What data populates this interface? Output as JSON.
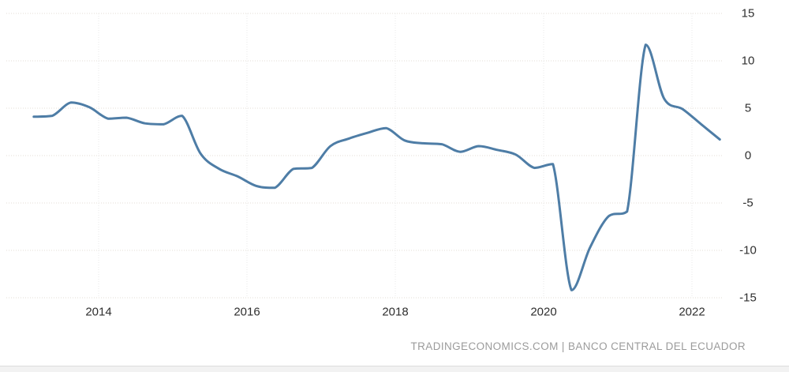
{
  "chart_data": {
    "type": "line",
    "title": "",
    "xlabel": "",
    "ylabel": "",
    "legend": "none",
    "grid": "dotted",
    "line_color": "#4e7da6",
    "ylim": [
      -15,
      15
    ],
    "y_ticks": [
      "15",
      "10",
      "5",
      "0",
      "-5",
      "-10",
      "-15"
    ],
    "x_ticks": [
      "2014",
      "2016",
      "2018",
      "2020",
      "2022"
    ],
    "x_range": [
      "2013-Q1",
      "2022-Q2"
    ],
    "points": [
      {
        "q": "2013-Q1",
        "v": 4.1
      },
      {
        "q": "2013-Q2",
        "v": 4.2
      },
      {
        "q": "2013-Q3",
        "v": 5.6
      },
      {
        "q": "2013-Q4",
        "v": 5.1
      },
      {
        "q": "2014-Q1",
        "v": 3.9
      },
      {
        "q": "2014-Q2",
        "v": 4.0
      },
      {
        "q": "2014-Q3",
        "v": 3.4
      },
      {
        "q": "2014-Q4",
        "v": 3.3
      },
      {
        "q": "2015-Q1",
        "v": 4.2
      },
      {
        "q": "2015-Q2",
        "v": 0.2
      },
      {
        "q": "2015-Q3",
        "v": -1.4
      },
      {
        "q": "2015-Q4",
        "v": -2.2
      },
      {
        "q": "2016-Q1",
        "v": -3.2
      },
      {
        "q": "2016-Q2",
        "v": -3.4
      },
      {
        "q": "2016-Q3",
        "v": -1.4
      },
      {
        "q": "2016-Q4",
        "v": -1.3
      },
      {
        "q": "2017-Q1",
        "v": 1.0
      },
      {
        "q": "2017-Q2",
        "v": 1.8
      },
      {
        "q": "2017-Q3",
        "v": 2.4
      },
      {
        "q": "2017-Q4",
        "v": 2.9
      },
      {
        "q": "2018-Q1",
        "v": 1.6
      },
      {
        "q": "2018-Q2",
        "v": 1.3
      },
      {
        "q": "2018-Q3",
        "v": 1.2
      },
      {
        "q": "2018-Q4",
        "v": 0.4
      },
      {
        "q": "2019-Q1",
        "v": 1.0
      },
      {
        "q": "2019-Q2",
        "v": 0.6
      },
      {
        "q": "2019-Q3",
        "v": 0.1
      },
      {
        "q": "2019-Q4",
        "v": -1.3
      },
      {
        "q": "2020-Q1",
        "v": -0.9
      },
      {
        "q": "2020-Q2",
        "v": -14.2
      },
      {
        "q": "2020-Q3",
        "v": -9.7
      },
      {
        "q": "2020-Q4",
        "v": -6.4
      },
      {
        "q": "2021-Q1",
        "v": -5.9
      },
      {
        "q": "2021-Q2",
        "v": 11.7
      },
      {
        "q": "2021-Q3",
        "v": 6.0
      },
      {
        "q": "2021-Q4",
        "v": 4.9
      },
      {
        "q": "2022-Q1",
        "v": 3.3
      },
      {
        "q": "2022-Q2",
        "v": 1.7
      }
    ]
  },
  "footer": {
    "attribution": "TRADINGECONOMICS.COM | BANCO CENTRAL DEL ECUADOR"
  }
}
